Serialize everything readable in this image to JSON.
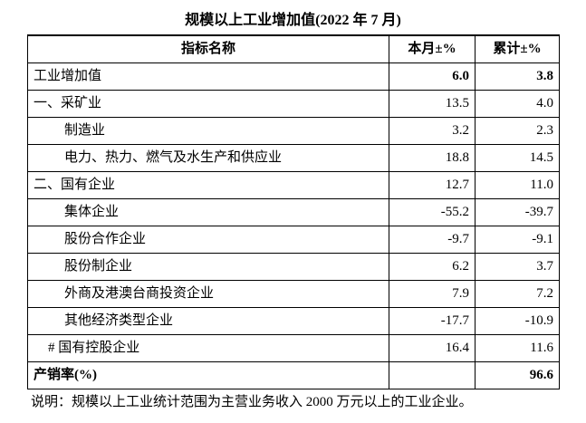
{
  "title": "规模以上工业增加值(2022 年 7 月)",
  "table": {
    "header": [
      "指标名称",
      "本月±%",
      "累计±%"
    ],
    "rows": [
      {
        "label": "工业增加值",
        "month": "6.0",
        "total": "3.8"
      },
      {
        "label": "一、采矿业",
        "month": "13.5",
        "total": "4.0"
      },
      {
        "label": "制造业",
        "month": "3.2",
        "total": "2.3"
      },
      {
        "label": "电力、热力、燃气及水生产和供应业",
        "month": "18.8",
        "total": "14.5"
      },
      {
        "label": "二、国有企业",
        "month": "12.7",
        "total": "11.0"
      },
      {
        "label": "集体企业",
        "month": "-55.2",
        "total": "-39.7"
      },
      {
        "label": "股份合作企业",
        "month": "-9.7",
        "total": "-9.1"
      },
      {
        "label": "股份制企业",
        "month": "6.2",
        "total": "3.7"
      },
      {
        "label": "外商及港澳台商投资企业",
        "month": "7.9",
        "total": "7.2"
      },
      {
        "label": "其他经济类型企业",
        "month": "-17.7",
        "total": "-10.9"
      },
      {
        "label": "# 国有控股企业",
        "month": "16.4",
        "total": "11.6"
      },
      {
        "label": "产销率(%)",
        "total": "96.6"
      }
    ]
  },
  "note": "说明：规模以上工业统计范围为主营业务收入 2000 万元以上的工业企业。"
}
